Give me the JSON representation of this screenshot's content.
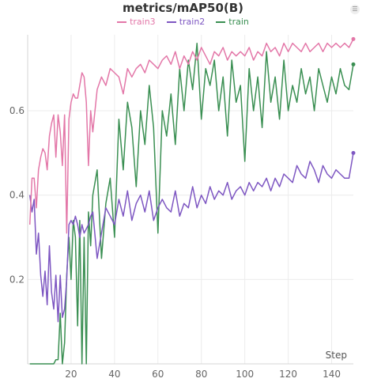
{
  "chart_data": {
    "type": "line",
    "title": "metrics/mAP50(B)",
    "xlabel": "Step",
    "ylabel": "",
    "xlim": [
      0,
      150
    ],
    "ylim": [
      0,
      0.78
    ],
    "xticks": [
      20,
      40,
      60,
      80,
      100,
      120,
      140
    ],
    "yticks": [
      0.2,
      0.4,
      0.6
    ],
    "grid": true,
    "legend_position": "top-center",
    "series": [
      {
        "name": "train3",
        "color": "#e377a8",
        "endpoint_marker": true,
        "x": [
          1,
          2,
          3,
          4,
          5,
          6,
          7,
          8,
          9,
          10,
          11,
          12,
          13,
          14,
          15,
          16,
          17,
          18,
          19,
          20,
          21,
          22,
          23,
          24,
          25,
          26,
          27,
          28,
          29,
          30,
          32,
          34,
          36,
          38,
          40,
          42,
          44,
          46,
          48,
          50,
          52,
          54,
          56,
          58,
          60,
          62,
          64,
          66,
          68,
          70,
          72,
          74,
          76,
          78,
          80,
          82,
          84,
          86,
          88,
          90,
          92,
          94,
          96,
          98,
          100,
          102,
          104,
          106,
          108,
          110,
          112,
          114,
          116,
          118,
          120,
          122,
          124,
          126,
          128,
          130,
          132,
          134,
          136,
          138,
          140,
          142,
          144,
          146,
          148,
          150
        ],
        "y": [
          0.33,
          0.44,
          0.44,
          0.37,
          0.46,
          0.49,
          0.51,
          0.5,
          0.46,
          0.54,
          0.57,
          0.59,
          0.49,
          0.59,
          0.55,
          0.47,
          0.59,
          0.31,
          0.58,
          0.62,
          0.64,
          0.63,
          0.63,
          0.66,
          0.69,
          0.68,
          0.62,
          0.47,
          0.6,
          0.55,
          0.65,
          0.68,
          0.66,
          0.7,
          0.69,
          0.68,
          0.64,
          0.7,
          0.68,
          0.7,
          0.71,
          0.69,
          0.72,
          0.71,
          0.7,
          0.72,
          0.73,
          0.71,
          0.74,
          0.7,
          0.73,
          0.71,
          0.74,
          0.72,
          0.75,
          0.73,
          0.71,
          0.74,
          0.73,
          0.75,
          0.72,
          0.74,
          0.73,
          0.74,
          0.73,
          0.75,
          0.72,
          0.74,
          0.73,
          0.76,
          0.74,
          0.75,
          0.73,
          0.76,
          0.74,
          0.76,
          0.75,
          0.74,
          0.76,
          0.74,
          0.75,
          0.76,
          0.74,
          0.76,
          0.75,
          0.76,
          0.75,
          0.76,
          0.75,
          0.77
        ]
      },
      {
        "name": "train2",
        "color": "#7e57c2",
        "endpoint_marker": true,
        "x": [
          1,
          2,
          3,
          4,
          5,
          6,
          7,
          8,
          9,
          10,
          11,
          12,
          13,
          14,
          15,
          16,
          17,
          18,
          19,
          20,
          21,
          22,
          23,
          24,
          25,
          26,
          27,
          28,
          29,
          30,
          32,
          34,
          36,
          38,
          40,
          42,
          44,
          46,
          48,
          50,
          52,
          54,
          56,
          58,
          60,
          62,
          64,
          66,
          68,
          70,
          72,
          74,
          76,
          78,
          80,
          82,
          84,
          86,
          88,
          90,
          92,
          94,
          96,
          98,
          100,
          102,
          104,
          106,
          108,
          110,
          112,
          114,
          116,
          118,
          120,
          122,
          124,
          126,
          128,
          130,
          132,
          134,
          136,
          138,
          140,
          142,
          144,
          146,
          148,
          150
        ],
        "y": [
          0.4,
          0.36,
          0.39,
          0.26,
          0.31,
          0.21,
          0.16,
          0.22,
          0.14,
          0.28,
          0.17,
          0.13,
          0.21,
          0.1,
          0.21,
          0.11,
          0.13,
          0.2,
          0.33,
          0.34,
          0.33,
          0.35,
          0.33,
          0.3,
          0.33,
          0.31,
          0.32,
          0.33,
          0.35,
          0.36,
          0.25,
          0.31,
          0.37,
          0.35,
          0.33,
          0.39,
          0.35,
          0.41,
          0.34,
          0.38,
          0.4,
          0.36,
          0.41,
          0.34,
          0.37,
          0.39,
          0.37,
          0.36,
          0.41,
          0.35,
          0.38,
          0.37,
          0.42,
          0.37,
          0.4,
          0.38,
          0.42,
          0.39,
          0.41,
          0.4,
          0.43,
          0.39,
          0.41,
          0.42,
          0.4,
          0.43,
          0.41,
          0.43,
          0.42,
          0.44,
          0.41,
          0.44,
          0.42,
          0.45,
          0.44,
          0.43,
          0.47,
          0.45,
          0.44,
          0.48,
          0.46,
          0.43,
          0.47,
          0.45,
          0.44,
          0.46,
          0.45,
          0.44,
          0.44,
          0.5
        ]
      },
      {
        "name": "train",
        "color": "#3a8f52",
        "endpoint_marker": true,
        "x": [
          1,
          2,
          3,
          4,
          5,
          6,
          7,
          8,
          9,
          10,
          11,
          12,
          13,
          14,
          15,
          16,
          17,
          18,
          19,
          20,
          21,
          22,
          23,
          24,
          25,
          26,
          27,
          28,
          29,
          30,
          32,
          34,
          36,
          38,
          40,
          42,
          44,
          46,
          48,
          50,
          52,
          54,
          56,
          58,
          60,
          62,
          64,
          66,
          68,
          70,
          72,
          74,
          76,
          78,
          80,
          82,
          84,
          86,
          88,
          90,
          92,
          94,
          96,
          98,
          100,
          102,
          104,
          106,
          108,
          110,
          112,
          114,
          116,
          118,
          120,
          122,
          124,
          126,
          128,
          130,
          132,
          134,
          136,
          138,
          140,
          142,
          144,
          146,
          148,
          150
        ],
        "y": [
          0.0,
          0.0,
          0.0,
          0.0,
          0.0,
          0.0,
          0.0,
          0.0,
          0.0,
          0.0,
          0.0,
          0.0,
          0.01,
          0.01,
          0.12,
          0.0,
          0.05,
          0.21,
          0.3,
          0.2,
          0.34,
          0.3,
          0.09,
          0.34,
          0.0,
          0.3,
          0.0,
          0.36,
          0.28,
          0.4,
          0.46,
          0.25,
          0.38,
          0.44,
          0.3,
          0.58,
          0.46,
          0.62,
          0.56,
          0.42,
          0.6,
          0.52,
          0.66,
          0.56,
          0.31,
          0.6,
          0.54,
          0.64,
          0.52,
          0.7,
          0.6,
          0.72,
          0.65,
          0.76,
          0.58,
          0.7,
          0.66,
          0.72,
          0.6,
          0.68,
          0.54,
          0.72,
          0.62,
          0.66,
          0.48,
          0.7,
          0.6,
          0.68,
          0.56,
          0.74,
          0.62,
          0.68,
          0.58,
          0.72,
          0.6,
          0.66,
          0.62,
          0.7,
          0.64,
          0.68,
          0.6,
          0.7,
          0.66,
          0.62,
          0.68,
          0.64,
          0.7,
          0.66,
          0.65,
          0.71
        ]
      }
    ]
  }
}
